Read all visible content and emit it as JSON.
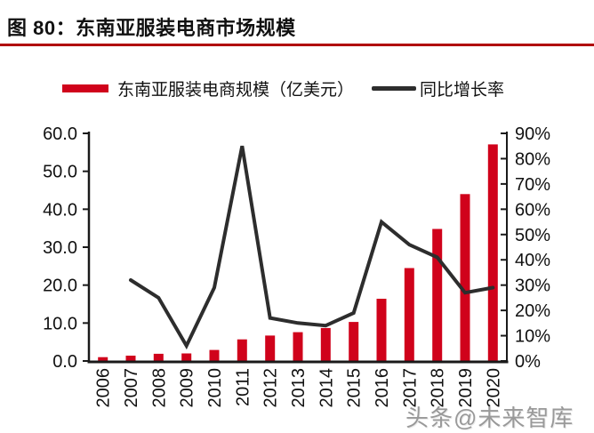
{
  "header": {
    "title": "图 80：东南亚服装电商市场规模",
    "underline_color": "#b00000"
  },
  "legend": {
    "items": [
      {
        "label": "东南亚服装电商规模（亿美元）",
        "swatch": "bar",
        "color": "#d0021b"
      },
      {
        "label": "同比增长率",
        "swatch": "line",
        "color": "#2d2d2d"
      }
    ]
  },
  "watermark": {
    "text": "头条@未来智库",
    "color": "#8f8f8f"
  },
  "colors": {
    "bar": "#d0021b",
    "line": "#2d2d2d",
    "axis": "#1a1a1a",
    "background": "#ffffff"
  },
  "chart_data": {
    "type": "bar",
    "subtype": "combo-bar-line",
    "title": "东南亚服装电商市场规模",
    "categories": [
      "2006",
      "2007",
      "2008",
      "2009",
      "2010",
      "2011",
      "2012",
      "2013",
      "2014",
      "2015",
      "2016",
      "2017",
      "2018",
      "2019",
      "2020"
    ],
    "series": [
      {
        "name": "东南亚服装电商规模（亿美元）",
        "type": "bar",
        "axis": "left",
        "color": "#d0021b",
        "values": [
          1.0,
          1.4,
          1.9,
          2.0,
          2.9,
          5.7,
          6.7,
          7.6,
          8.7,
          10.3,
          16.4,
          24.5,
          34.8,
          44.0,
          57.1
        ]
      },
      {
        "name": "同比增长率",
        "type": "line",
        "axis": "right",
        "unit": "%",
        "color": "#2d2d2d",
        "values": [
          null,
          32,
          25,
          6,
          29,
          85,
          17,
          15,
          14,
          19,
          55,
          46,
          41,
          27,
          29
        ]
      }
    ],
    "left_axis": {
      "min": 0,
      "max": 60,
      "step": 10,
      "labels": [
        "0.0",
        "10.0",
        "20.0",
        "30.0",
        "40.0",
        "50.0",
        "60.0"
      ]
    },
    "right_axis": {
      "min": 0,
      "max": 90,
      "step": 10,
      "labels": [
        "0%",
        "10%",
        "20%",
        "30%",
        "40%",
        "50%",
        "60%",
        "70%",
        "80%",
        "90%"
      ]
    },
    "grid": false,
    "legend_position": "top",
    "x_label_rotation": -90
  }
}
